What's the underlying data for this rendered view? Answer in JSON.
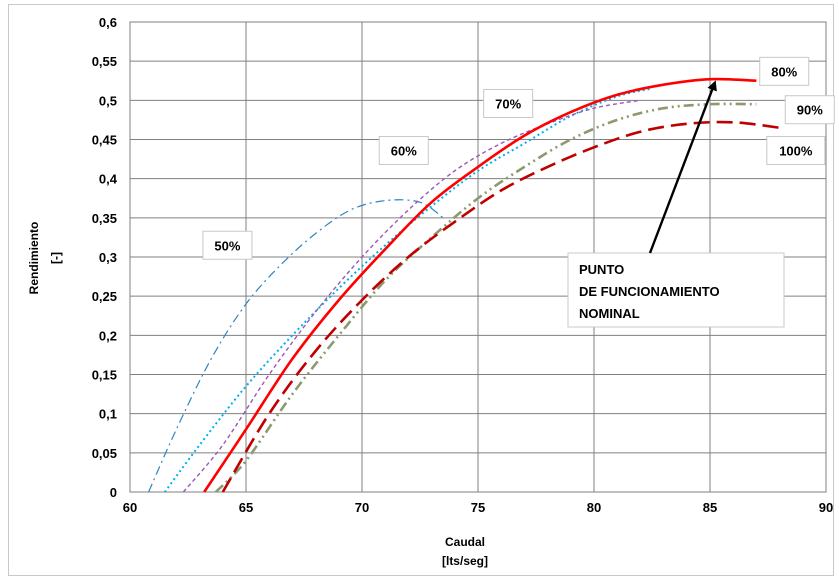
{
  "chart_data": {
    "type": "line",
    "title": "",
    "xlabel": "Caudal",
    "xunit": "[lts/seg]",
    "ylabel": "Rendimiento",
    "yunit": "[-]",
    "xlim": [
      60,
      90
    ],
    "ylim": [
      0,
      0.6
    ],
    "xticks": [
      "60",
      "65",
      "70",
      "75",
      "80",
      "85",
      "90"
    ],
    "yticks": [
      "0",
      "0,05",
      "0,1",
      "0,15",
      "0,2",
      "0,25",
      "0,3",
      "0,35",
      "0,4",
      "0,45",
      "0,5",
      "0,55",
      "0,6"
    ],
    "grid": true,
    "series": [
      {
        "name": "50%",
        "color": "#2e86c1",
        "dash": "dashdot",
        "x": [
          60.8,
          62,
          63.5,
          65,
          66.5,
          68,
          69.5,
          71,
          72.5,
          73.5
        ],
        "y": [
          0.0,
          0.08,
          0.17,
          0.24,
          0.29,
          0.33,
          0.36,
          0.372,
          0.37,
          0.35
        ]
      },
      {
        "name": "60%",
        "color": "#00b0f0",
        "dash": "dotted",
        "x": [
          61.5,
          63,
          65,
          67,
          69,
          71,
          73,
          75,
          77,
          79,
          81,
          82.5
        ],
        "y": [
          0.0,
          0.06,
          0.135,
          0.2,
          0.26,
          0.315,
          0.365,
          0.41,
          0.445,
          0.48,
          0.505,
          0.515
        ]
      },
      {
        "name": "70%",
        "color": "#9b59b6",
        "dash": "dash",
        "x": [
          62.3,
          64,
          66,
          68,
          70,
          72,
          74,
          76,
          78,
          80,
          82
        ],
        "y": [
          0.0,
          0.06,
          0.15,
          0.23,
          0.3,
          0.36,
          0.41,
          0.445,
          0.47,
          0.49,
          0.5
        ]
      },
      {
        "name": "80%",
        "color": "#ff0000",
        "dash": "solid",
        "x": [
          63.2,
          65,
          67,
          69,
          71,
          73,
          75,
          77,
          79,
          81,
          83,
          85,
          87
        ],
        "y": [
          0.0,
          0.08,
          0.17,
          0.245,
          0.31,
          0.37,
          0.415,
          0.455,
          0.485,
          0.507,
          0.52,
          0.527,
          0.525
        ]
      },
      {
        "name": "90%",
        "color": "#8c9a6e",
        "dash": "dashdotdot",
        "x": [
          63.7,
          65,
          67,
          69,
          71,
          73,
          75,
          77,
          79,
          81,
          83,
          85,
          87
        ],
        "y": [
          0.0,
          0.04,
          0.125,
          0.2,
          0.27,
          0.325,
          0.375,
          0.415,
          0.45,
          0.475,
          0.49,
          0.495,
          0.495
        ]
      },
      {
        "name": "100%",
        "color": "#c00000",
        "dash": "longdash",
        "x": [
          64,
          66,
          68,
          70,
          72,
          74,
          76,
          78,
          80,
          82,
          84,
          86,
          88
        ],
        "y": [
          0.0,
          0.1,
          0.18,
          0.245,
          0.3,
          0.345,
          0.385,
          0.415,
          0.44,
          0.46,
          0.47,
          0.472,
          0.465
        ]
      }
    ],
    "curve_labels": [
      {
        "text": "50%",
        "x": 64.2,
        "y": 0.315
      },
      {
        "text": "60%",
        "x": 71.8,
        "y": 0.436
      },
      {
        "text": "70%",
        "x": 76.3,
        "y": 0.496
      },
      {
        "text": "80%",
        "x": 88.2,
        "y": 0.537
      },
      {
        "text": "90%",
        "x": 89.3,
        "y": 0.488
      },
      {
        "text": "100%",
        "x": 88.7,
        "y": 0.436
      }
    ],
    "annotation": {
      "lines": [
        "PUNTO",
        "DE FUNCIONAMIENTO",
        "NOMINAL"
      ],
      "arrow_from": [
        82.2,
        0.31
      ],
      "arrow_to": [
        85.2,
        0.527
      ]
    }
  }
}
